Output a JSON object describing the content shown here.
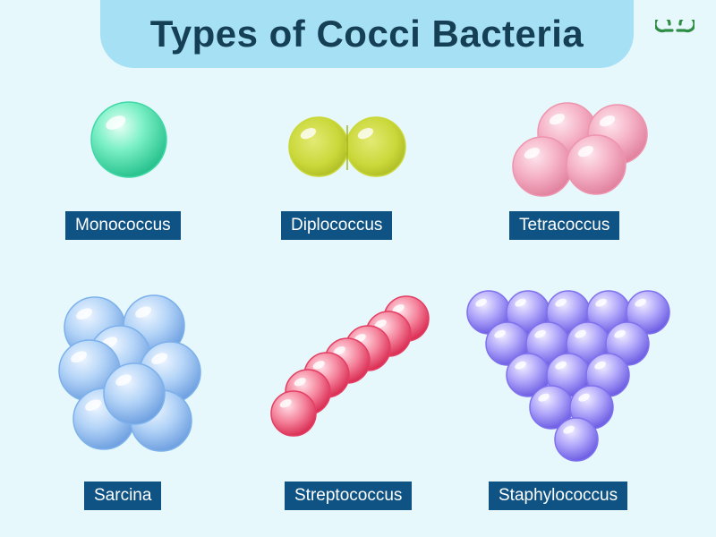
{
  "title": "Types of Cocci Bacteria",
  "logo": {
    "icon": "geeksforgeeks-logo-icon",
    "color": "#2f8d46"
  },
  "colors": {
    "title_bg": "#a6e0f4",
    "title_text": "#153f54",
    "label_bg": "#0f5384",
    "monococcus": "#3fd8a6",
    "diplococcus": "#cad83a",
    "tetracoccus": "#ee94ae",
    "sarcina": "#7cb1ec",
    "streptococcus": "#e43e64",
    "staphylococcus": "#7f70ee"
  },
  "types": [
    {
      "id": "monococcus",
      "label": "Monococcus"
    },
    {
      "id": "diplococcus",
      "label": "Diplococcus"
    },
    {
      "id": "tetracoccus",
      "label": "Tetracoccus"
    },
    {
      "id": "sarcina",
      "label": "Sarcina"
    },
    {
      "id": "streptococcus",
      "label": "Streptococcus"
    },
    {
      "id": "staphylococcus",
      "label": "Staphylococcus"
    }
  ]
}
